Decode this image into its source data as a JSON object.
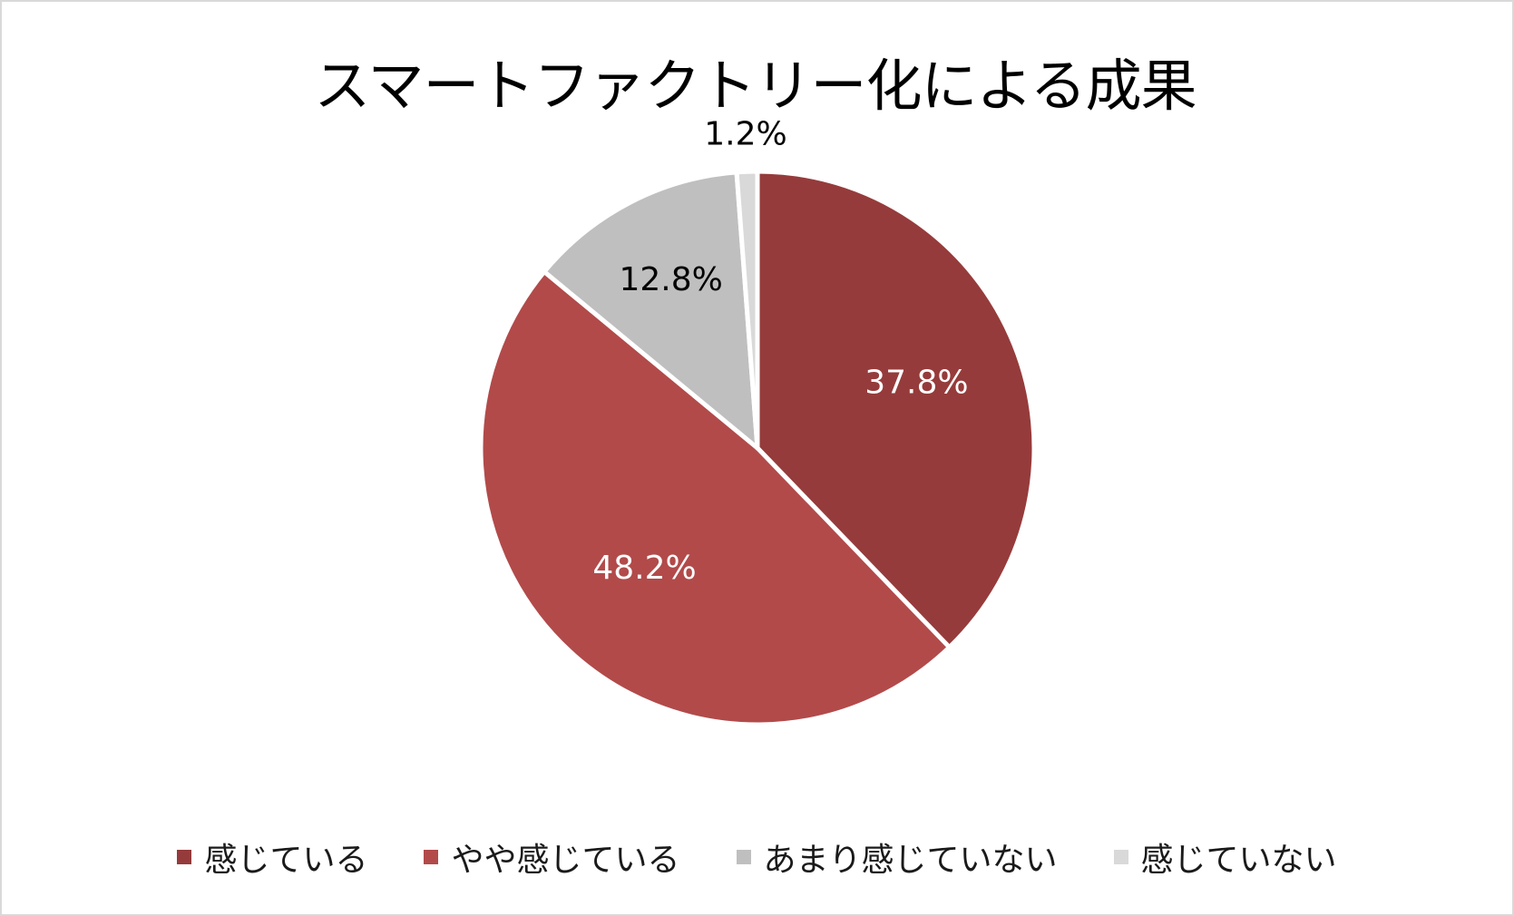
{
  "chart_data": {
    "type": "pie",
    "title": "スマートファクトリー化による成果",
    "categories": [
      "感じている",
      "やや感じている",
      "あまり感じていない",
      "感じていない"
    ],
    "values": [
      37.8,
      48.2,
      12.8,
      1.2
    ],
    "labels": [
      "37.8%",
      "48.2%",
      "12.8%",
      "1.2%"
    ],
    "colors": [
      "#963b3b",
      "#b24a4a",
      "#bfbfbf",
      "#d9d9d9"
    ],
    "label_colors": [
      "#ffffff",
      "#ffffff",
      "#000000",
      "#000000"
    ],
    "start_angle_deg": 0,
    "direction": "clockwise",
    "legend_position": "bottom"
  }
}
